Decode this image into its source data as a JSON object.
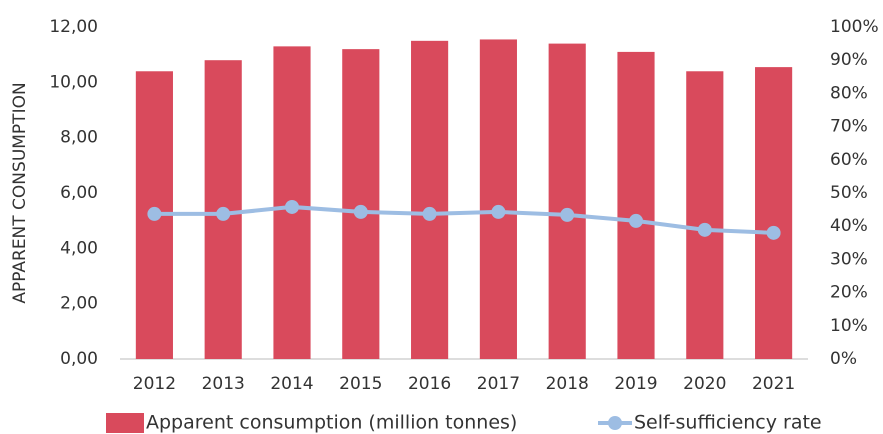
{
  "chart_data": {
    "type": "bar",
    "y_label": "APPARENT CONSUMPTION",
    "categories": [
      "2012",
      "2013",
      "2014",
      "2015",
      "2016",
      "2017",
      "2018",
      "2019",
      "2020",
      "2021"
    ],
    "series": [
      {
        "name": "Apparent consumption (million tonnes)",
        "type": "bar",
        "color": "#d94a5c",
        "values": [
          10.4,
          10.8,
          11.3,
          11.2,
          11.5,
          11.55,
          11.4,
          11.1,
          10.4,
          10.55
        ]
      },
      {
        "name": "Self-sufficiency rate",
        "type": "line",
        "axis": "y2",
        "color": "#9dbde3",
        "values": [
          43.7,
          43.7,
          45.8,
          44.3,
          43.7,
          44.3,
          43.4,
          41.6,
          38.9,
          38.0
        ]
      }
    ],
    "ylim": [
      0,
      12
    ],
    "yticks": [
      {
        "value": 0,
        "label": "0,00"
      },
      {
        "value": 2,
        "label": "2,00"
      },
      {
        "value": 4,
        "label": "4,00"
      },
      {
        "value": 6,
        "label": "6,00"
      },
      {
        "value": 8,
        "label": "8,00"
      },
      {
        "value": 10,
        "label": "10,00"
      },
      {
        "value": 12,
        "label": "12,00"
      }
    ],
    "y2lim": [
      0,
      100
    ],
    "y2ticks": [
      {
        "value": 0,
        "label": "0%"
      },
      {
        "value": 10,
        "label": "10%"
      },
      {
        "value": 20,
        "label": "20%"
      },
      {
        "value": 30,
        "label": "30%"
      },
      {
        "value": 40,
        "label": "40%"
      },
      {
        "value": 50,
        "label": "50%"
      },
      {
        "value": 60,
        "label": "60%"
      },
      {
        "value": 70,
        "label": "70%"
      },
      {
        "value": 80,
        "label": "80%"
      },
      {
        "value": 90,
        "label": "90%"
      },
      {
        "value": 100,
        "label": "100%"
      }
    ],
    "grid": false,
    "legend": "bottom"
  }
}
